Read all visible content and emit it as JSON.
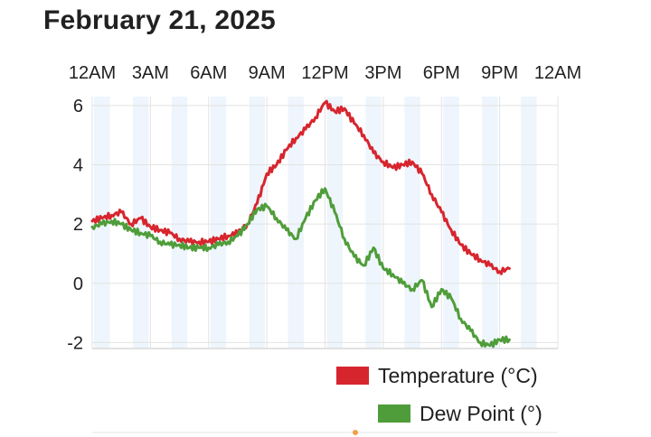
{
  "page": {
    "title": "February 21, 2025"
  },
  "chart_data": {
    "type": "line",
    "title": "",
    "xlabel": "",
    "ylabel": "",
    "x_unit": "hour of day",
    "x_ticks": [
      0,
      3,
      6,
      9,
      12,
      15,
      18,
      21,
      24
    ],
    "x_tick_labels": [
      "12AM",
      "3AM",
      "6AM",
      "9AM",
      "12PM",
      "3PM",
      "6PM",
      "9PM",
      "12AM"
    ],
    "y_ticks": [
      6,
      4,
      2,
      0,
      -2
    ],
    "y_tick_labels": [
      "6",
      "4",
      "2",
      "0",
      "-2"
    ],
    "xlim": [
      0,
      24
    ],
    "ylim": [
      -2.2,
      6.3
    ],
    "grid": true,
    "legend": "bottom-right",
    "series": [
      {
        "name": "Temperature (°C)",
        "color": "#d7252e",
        "x": [
          0,
          0.5,
          1,
          1.5,
          2,
          2.5,
          3,
          3.5,
          4,
          4.5,
          5,
          5.5,
          6,
          6.5,
          7,
          7.5,
          8,
          8.5,
          9,
          9.5,
          10,
          10.5,
          11,
          11.5,
          12,
          12.5,
          13,
          13.5,
          14,
          14.5,
          15,
          15.5,
          16,
          16.5,
          17,
          17.5,
          18,
          18.5,
          19,
          19.5,
          20,
          20.5,
          21,
          21.5
        ],
        "y": [
          2.1,
          2.2,
          2.3,
          2.4,
          2.0,
          2.2,
          1.9,
          1.8,
          1.7,
          1.5,
          1.4,
          1.4,
          1.4,
          1.5,
          1.6,
          1.7,
          2.0,
          2.7,
          3.7,
          4.0,
          4.5,
          4.9,
          5.2,
          5.6,
          6.1,
          5.8,
          5.9,
          5.4,
          5.0,
          4.4,
          4.1,
          3.9,
          4.0,
          4.1,
          3.7,
          3.0,
          2.4,
          1.8,
          1.3,
          1.0,
          0.8,
          0.6,
          0.4,
          0.5
        ]
      },
      {
        "name": "Dew Point (°)",
        "color": "#4f9d3a",
        "x": [
          0,
          0.5,
          1,
          1.5,
          2,
          2.5,
          3,
          3.5,
          4,
          4.5,
          5,
          5.5,
          6,
          6.5,
          7,
          7.5,
          8,
          8.5,
          9,
          9.5,
          10,
          10.5,
          11,
          11.5,
          12,
          12.5,
          13,
          13.5,
          14,
          14.5,
          15,
          15.5,
          16,
          16.5,
          17,
          17.5,
          18,
          18.5,
          19,
          19.5,
          20,
          20.5,
          21,
          21.5
        ],
        "y": [
          1.9,
          2.0,
          2.1,
          2.0,
          1.8,
          1.7,
          1.6,
          1.4,
          1.3,
          1.3,
          1.2,
          1.2,
          1.2,
          1.3,
          1.4,
          1.6,
          2.0,
          2.5,
          2.6,
          2.2,
          1.8,
          1.5,
          2.2,
          2.8,
          3.2,
          2.4,
          1.5,
          0.9,
          0.6,
          1.2,
          0.5,
          0.3,
          0.0,
          -0.2,
          0.1,
          -0.8,
          -0.2,
          -0.5,
          -1.2,
          -1.6,
          -2.0,
          -2.1,
          -1.9,
          -1.9
        ]
      }
    ]
  }
}
